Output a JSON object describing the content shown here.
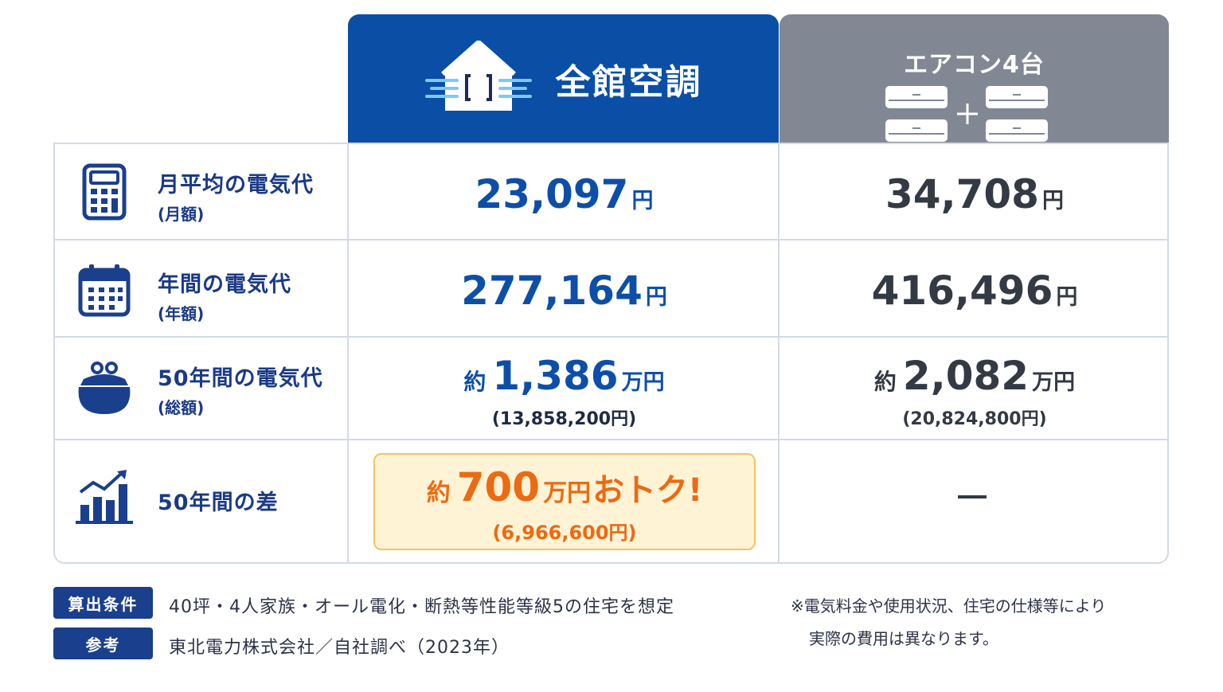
{
  "header": {
    "col_a_title": "全館空調",
    "col_b_title": "エアコン4台",
    "col_a_color": "#0a4ea6",
    "col_b_color": "#828893"
  },
  "rows": [
    {
      "icon": "calculator-icon",
      "label": "月平均の電気代",
      "sub": "(月額)",
      "a": {
        "value": "23,097",
        "unit": "円"
      },
      "b": {
        "value": "34,708",
        "unit": "円"
      }
    },
    {
      "icon": "calendar-icon",
      "label": "年間の電気代",
      "sub": "(年額)",
      "a": {
        "value": "277,164",
        "unit": "円"
      },
      "b": {
        "value": "416,496",
        "unit": "円"
      }
    },
    {
      "icon": "coin-purse-icon",
      "label": "50年間の電気代",
      "sub": "(総額)",
      "a": {
        "prefix": "約",
        "value": "1,386",
        "unit": "万円",
        "detail": "(13,858,200円)"
      },
      "b": {
        "prefix": "約",
        "value": "2,082",
        "unit": "万円",
        "detail": "(20,824,800円)"
      }
    },
    {
      "icon": "growth-chart-icon",
      "label": "50年間の差",
      "a": {
        "prefix": "約",
        "value": "700",
        "unit": "万円",
        "tail": "おトク!",
        "detail": "(6,966,600円)"
      },
      "b": {
        "value": "—"
      }
    }
  ],
  "footer": {
    "conditions_tag": "算出条件",
    "conditions_text": "40坪・4人家族・オール電化・断熱等性能等級5の住宅を想定",
    "reference_tag": "参考",
    "reference_text": "東北電力株式会社／自社調べ（2023年）",
    "note_line1": "※電気料金や使用状況、住宅の仕様等により",
    "note_line2": "実際の費用は異なります。"
  }
}
